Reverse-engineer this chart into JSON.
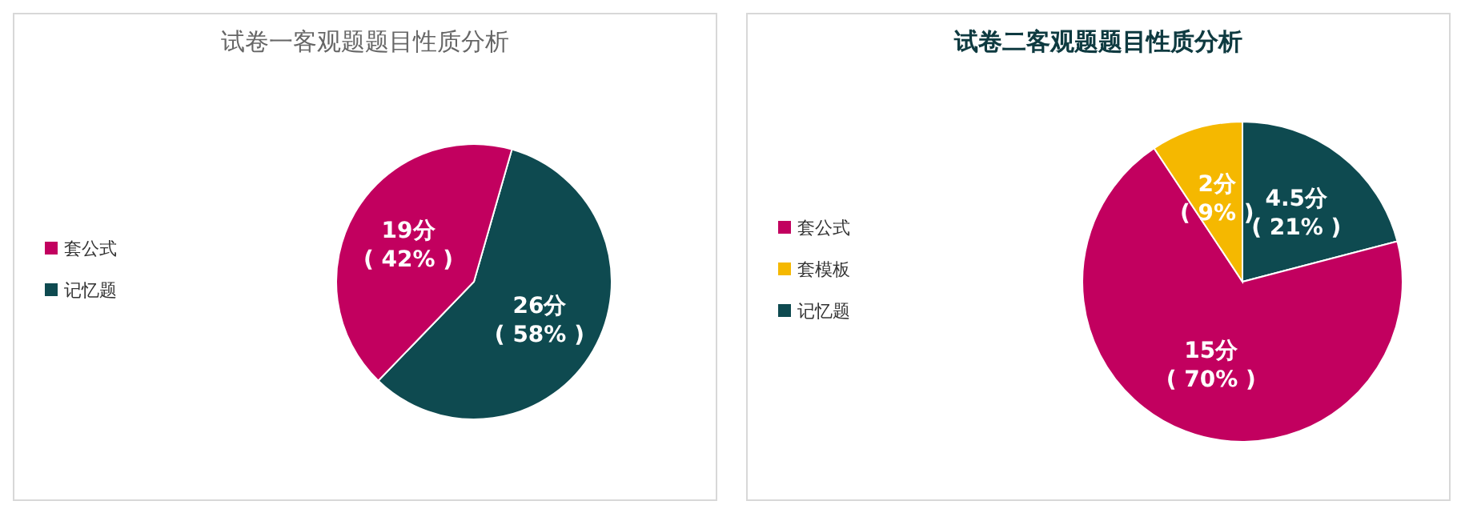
{
  "chart_data": [
    {
      "type": "pie",
      "title": "试卷一客观题题目性质分析",
      "categories": [
        "记忆题",
        "套公式"
      ],
      "values": [
        26,
        19
      ],
      "colors": [
        "#0e4a50",
        "#c2005f"
      ],
      "value_labels": [
        "26分\n( 58% )",
        "19分\n( 42% )"
      ],
      "legend": "left"
    },
    {
      "type": "pie",
      "title": "试卷二客观题题目性质分析",
      "categories": [
        "记忆题",
        "套公式",
        "套模板"
      ],
      "values": [
        4.5,
        15,
        2
      ],
      "colors": [
        "#0e4a50",
        "#c2005f",
        "#f5b800"
      ],
      "value_labels": [
        "4.5分\n( 21% )",
        "15分\n( 70% )",
        "2分\n( 9% )"
      ],
      "legend": "left"
    }
  ]
}
